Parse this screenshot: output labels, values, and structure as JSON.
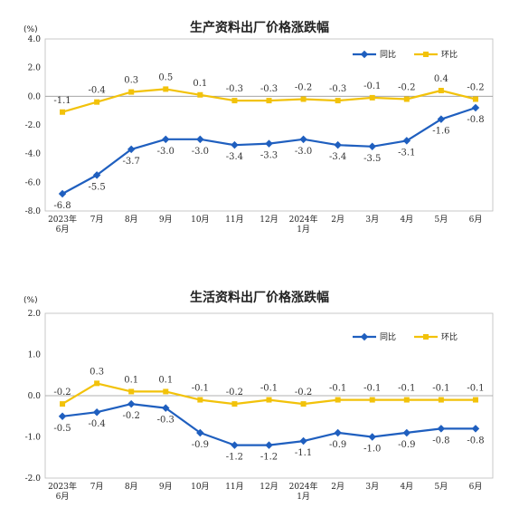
{
  "chart_data": [
    {
      "type": "line",
      "title": "生产资料出厂价格涨跌幅",
      "unit": "(%)",
      "categories": [
        "2023年\n6月",
        "7月",
        "8月",
        "9月",
        "10月",
        "11月",
        "12月",
        "2024年\n1月",
        "2月",
        "3月",
        "4月",
        "5月",
        "6月"
      ],
      "ylim": [
        -8.0,
        4.0
      ],
      "yticks": [
        "4.0",
        "2.0",
        "0.0",
        "-2.0",
        "-4.0",
        "-6.0",
        "-8.0"
      ],
      "legend_position": "top-right",
      "series": [
        {
          "name": "同比",
          "color": "#1f5fbf",
          "values": [
            -6.8,
            -5.5,
            -3.7,
            -3.0,
            -3.0,
            -3.4,
            -3.3,
            -3.0,
            -3.4,
            -3.5,
            -3.1,
            -1.6,
            -0.8
          ],
          "labels": [
            "-6.8",
            "-5.5",
            "-3.7",
            "-3.0",
            "-3.0",
            "-3.4",
            "-3.3",
            "-3.0",
            "-3.4",
            "-3.5",
            "-3.1",
            "-1.6",
            "-0.8"
          ]
        },
        {
          "name": "环比",
          "color": "#f2c20a",
          "values": [
            -1.1,
            -0.4,
            0.3,
            0.5,
            0.1,
            -0.3,
            -0.3,
            -0.2,
            -0.3,
            -0.1,
            -0.2,
            0.4,
            -0.2
          ],
          "labels": [
            "-1.1",
            "-0.4",
            "0.3",
            "0.5",
            "0.1",
            "-0.3",
            "-0.3",
            "-0.2",
            "-0.3",
            "-0.1",
            "-0.2",
            "0.4",
            "-0.2"
          ]
        }
      ]
    },
    {
      "type": "line",
      "title": "生活资料出厂价格涨跌幅",
      "unit": "(%)",
      "categories": [
        "2023年\n6月",
        "7月",
        "8月",
        "9月",
        "10月",
        "11月",
        "12月",
        "2024年\n1月",
        "2月",
        "3月",
        "4月",
        "5月",
        "6月"
      ],
      "ylim": [
        -2.0,
        2.0
      ],
      "yticks": [
        "2.0",
        "1.0",
        "0.0",
        "-1.0",
        "-2.0"
      ],
      "legend_position": "top-right",
      "series": [
        {
          "name": "同比",
          "color": "#1f5fbf",
          "values": [
            -0.5,
            -0.4,
            -0.2,
            -0.3,
            -0.9,
            -1.2,
            -1.2,
            -1.1,
            -0.9,
            -1.0,
            -0.9,
            -0.8,
            -0.8
          ],
          "labels": [
            "-0.5",
            "-0.4",
            "-0.2",
            "-0.3",
            "-0.9",
            "-1.2",
            "-1.2",
            "-1.1",
            "-0.9",
            "-1.0",
            "-0.9",
            "-0.8",
            "-0.8"
          ]
        },
        {
          "name": "环比",
          "color": "#f2c20a",
          "values": [
            -0.2,
            0.3,
            0.1,
            0.1,
            -0.1,
            -0.2,
            -0.1,
            -0.2,
            -0.1,
            -0.1,
            -0.1,
            -0.1,
            -0.1
          ],
          "labels": [
            "-0.2",
            "0.3",
            "0.1",
            "0.1",
            "-0.1",
            "-0.2",
            "-0.1",
            "-0.2",
            "-0.1",
            "-0.1",
            "-0.1",
            "-0.1",
            "-0.1"
          ]
        }
      ]
    }
  ]
}
